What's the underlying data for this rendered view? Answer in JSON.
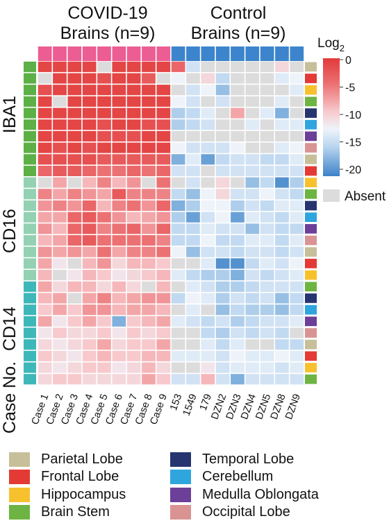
{
  "header": {
    "covid_line1": "COVID-19",
    "covid_line2": "Brains  (n=9)",
    "control_line1": "Control",
    "control_line2": "Brains (n=9)"
  },
  "markers": [
    "IBA1",
    "CD16",
    "CD14"
  ],
  "case_no_label": "Case No.",
  "scale": {
    "title": "Log",
    "title_sub": "2",
    "ticks": [
      "0",
      "-5",
      "-10",
      "-15",
      "-20"
    ],
    "absent_label": "Absent"
  },
  "colors": {
    "group_covid": "#ec5d93",
    "group_control": "#3c85cc",
    "marker_IBA1": "#5cb046",
    "marker_CD16": "#93d1b2",
    "marker_CD14": "#3eb7b9",
    "absent": "#dcdcdc"
  },
  "regions": [
    {
      "name": "Parietal Lobe",
      "color": "#c7bf9a"
    },
    {
      "name": "Frontal Lobe",
      "color": "#e33a35"
    },
    {
      "name": "Hippocampus",
      "color": "#f7c12e"
    },
    {
      "name": "Brain Stem",
      "color": "#6db443"
    },
    {
      "name": "Temporal Lobe",
      "color": "#263470"
    },
    {
      "name": "Cerebellum",
      "color": "#2fa5de"
    },
    {
      "name": "Medulla Oblongata",
      "color": "#6c3f98"
    },
    {
      "name": "Occipital Lobe",
      "color": "#d99393"
    }
  ],
  "region_legend_order": [
    "Parietal Lobe",
    "Temporal Lobe",
    "Frontal Lobe",
    "Cerebellum",
    "Hippocampus",
    "Medulla Oblongata",
    "Brain Stem",
    "Occipital Lobe"
  ],
  "chart_data": {
    "type": "heatmap",
    "x_labels": [
      "Case 1",
      "Case 2",
      "Case 3",
      "Case 4",
      "Case 5",
      "Case 6",
      "Case 7",
      "Case 8",
      "Case 9",
      "153",
      "1549",
      "179",
      "DZN2",
      "DZN3",
      "DZN4",
      "DZN5",
      "DZN8",
      "DZN9"
    ],
    "column_groups": [
      {
        "name": "COVID-19 Brains (n=9)",
        "count": 9
      },
      {
        "name": "Control Brains (n=9)",
        "count": 9
      }
    ],
    "row_markers": [
      "IBA1",
      "IBA1",
      "IBA1",
      "IBA1",
      "IBA1",
      "IBA1",
      "IBA1",
      "IBA1",
      "IBA1",
      "IBA1",
      "CD16",
      "CD16",
      "CD16",
      "CD16",
      "CD16",
      "CD16",
      "CD16",
      "CD16",
      "CD16",
      "CD14",
      "CD14",
      "CD14",
      "CD14",
      "CD14",
      "CD14",
      "CD14",
      "CD14",
      "CD14"
    ],
    "row_regions": [
      "Parietal Lobe",
      "Frontal Lobe",
      "Hippocampus",
      "Brain Stem",
      "Temporal Lobe",
      "Cerebellum",
      "Medulla Oblongata",
      "Occipital Lobe",
      "Parietal Lobe",
      "Frontal Lobe",
      "Hippocampus",
      "Brain Stem",
      "Temporal Lobe",
      "Cerebellum",
      "Medulla Oblongata",
      "Occipital Lobe",
      "Parietal Lobe",
      "Frontal Lobe",
      "Hippocampus",
      "Brain Stem",
      "Temporal Lobe",
      "Cerebellum",
      "Medulla Oblongata",
      "Occipital Lobe",
      "Parietal Lobe",
      "Frontal Lobe",
      "Hippocampus",
      "Brain Stem"
    ],
    "color_scale": {
      "min": -22,
      "max": 0,
      "label": "Log2",
      "absent": "Absent"
    },
    "values": [
      [
        -1,
        -1,
        -1,
        -1,
        null,
        -1,
        -1,
        -1,
        -1,
        -4,
        -15,
        null,
        null,
        null,
        null,
        null,
        -11,
        null
      ],
      [
        null,
        -1,
        -1,
        -1,
        -2,
        -1,
        -1,
        -3,
        null,
        -13,
        null,
        -11,
        -16,
        null,
        null,
        null,
        -14,
        -13
      ],
      [
        -2,
        -1,
        -1,
        -1,
        -1,
        -1,
        -1,
        -1,
        -1,
        null,
        -15,
        -13,
        -18,
        null,
        null,
        null,
        null,
        -14
      ],
      [
        -1,
        null,
        -1,
        -1,
        -1,
        -1,
        -1,
        -1,
        -1,
        -13,
        -15,
        null,
        -15,
        null,
        null,
        null,
        -14,
        null
      ],
      [
        -1,
        -1,
        -1,
        -1,
        -1,
        -1,
        -1,
        -1,
        -1,
        -17,
        -16,
        -14,
        null,
        -8,
        null,
        -14,
        -19,
        null
      ],
      [
        -1,
        -1,
        -1,
        -1,
        -2,
        -1,
        -1,
        -2,
        -2,
        -17,
        -16,
        -15,
        null,
        null,
        -14,
        null,
        -14,
        -14
      ],
      [
        -1,
        -1,
        -1,
        -1,
        -2,
        -2,
        -2,
        -1,
        -1,
        null,
        null,
        null,
        null,
        null,
        null,
        null,
        null,
        null
      ],
      [
        -1,
        -2,
        -1,
        -2,
        -1,
        -1,
        -1,
        -1,
        -1,
        -13,
        -15,
        -15,
        -15,
        -13,
        null,
        null,
        -14,
        -13
      ],
      [
        -2,
        -2,
        -2,
        -2,
        -3,
        -3,
        -3,
        -3,
        -3,
        -19,
        -14,
        -20,
        -16,
        -15,
        -15,
        -16,
        -16,
        -14
      ],
      [
        -4,
        -3,
        -3,
        -4,
        -5,
        -5,
        -4,
        -5,
        -4,
        -15,
        -15,
        null,
        -15,
        -15,
        -15,
        -15,
        -15,
        -15
      ],
      [
        null,
        -8,
        null,
        -9,
        -6,
        -9,
        -7,
        null,
        -5,
        null,
        -15,
        null,
        -11,
        null,
        -18,
        -16,
        -21,
        -17
      ],
      [
        -6,
        -8,
        -6,
        -7,
        -8,
        -3,
        -6,
        -6,
        -6,
        -16,
        -18,
        -13,
        -11,
        -15,
        -15,
        -13,
        -15,
        -16
      ],
      [
        -7,
        -6,
        -7,
        -4,
        -9,
        -6,
        -5,
        -7,
        -4,
        -19,
        -17,
        -13,
        -13,
        -17,
        -15,
        -16,
        -14,
        -14
      ],
      [
        -8,
        -8,
        -4,
        -3,
        -5,
        -7,
        -9,
        -8,
        -7,
        -17,
        -20,
        -15,
        -13,
        -20,
        -14,
        -15,
        -16,
        -14
      ],
      [
        -7,
        -9,
        -4,
        -3,
        -6,
        -5,
        -4,
        -7,
        -4,
        -16,
        -16,
        -14,
        -15,
        -15,
        -18,
        -15,
        -16,
        -16
      ],
      [
        -9,
        -8,
        -4,
        -3,
        -5,
        -5,
        -5,
        -5,
        -6,
        -16,
        -16,
        -13,
        -16,
        -16,
        -14,
        -14,
        -16,
        -14
      ],
      [
        -7,
        -8,
        -7,
        -8,
        -5,
        -8,
        -6,
        -6,
        -5,
        -13,
        -18,
        -15,
        -15,
        -16,
        -15,
        -15,
        -16,
        -15
      ],
      [
        -8,
        -12,
        null,
        -9,
        -7,
        -11,
        -9,
        -9,
        -10,
        null,
        null,
        -14,
        -21,
        -21,
        -16,
        -14,
        -15,
        -13
      ],
      [
        -9,
        null,
        -12,
        -9,
        -10,
        -12,
        -11,
        -10,
        -9,
        -14,
        -16,
        -17,
        -17,
        -19,
        -15,
        -16,
        -15,
        -14
      ],
      [
        -8,
        -11,
        -9,
        -9,
        -11,
        -9,
        -11,
        null,
        -9,
        null,
        -14,
        -15,
        -17,
        -17,
        -16,
        -15,
        -15,
        -15
      ],
      [
        -9,
        -8,
        null,
        -8,
        -6,
        -9,
        -8,
        -7,
        -7,
        -16,
        -13,
        -14,
        -17,
        -15,
        -16,
        -15,
        -18,
        -16
      ],
      [
        -10,
        -8,
        -10,
        -7,
        -7,
        -9,
        -8,
        -8,
        -9,
        null,
        -14,
        null,
        -18,
        -16,
        -17,
        -17,
        -18,
        -16
      ],
      [
        -8,
        -12,
        -10,
        -8,
        -10,
        -19,
        -10,
        -9,
        -8,
        -14,
        -15,
        -16,
        -15,
        -17,
        -16,
        -15,
        -15,
        -14
      ],
      [
        -12,
        -10,
        -11,
        -11,
        -10,
        -12,
        -10,
        -11,
        -10,
        null,
        null,
        -16,
        -17,
        -15,
        -16,
        -15,
        -16,
        null
      ],
      [
        -11,
        -12,
        -11,
        -10,
        -8,
        -11,
        -10,
        -10,
        -8,
        null,
        null,
        -14,
        -16,
        -14,
        null,
        null,
        -16,
        -16
      ],
      [
        -10,
        -11,
        -12,
        -10,
        -9,
        -10,
        -10,
        -9,
        -9,
        -14,
        -14,
        -14,
        -15,
        -13,
        -14,
        -14,
        -13,
        -14
      ],
      [
        -11,
        -12,
        -11,
        -10,
        -10,
        -12,
        -11,
        -9,
        -11,
        null,
        null,
        -12,
        -15,
        -14,
        -14,
        -14,
        -15,
        -14
      ],
      [
        -11,
        -10,
        -10,
        -11,
        -11,
        -11,
        -11,
        -8,
        -10,
        -15,
        -15,
        -9,
        -15,
        -19,
        -15,
        -15,
        -15,
        -15
      ]
    ]
  }
}
